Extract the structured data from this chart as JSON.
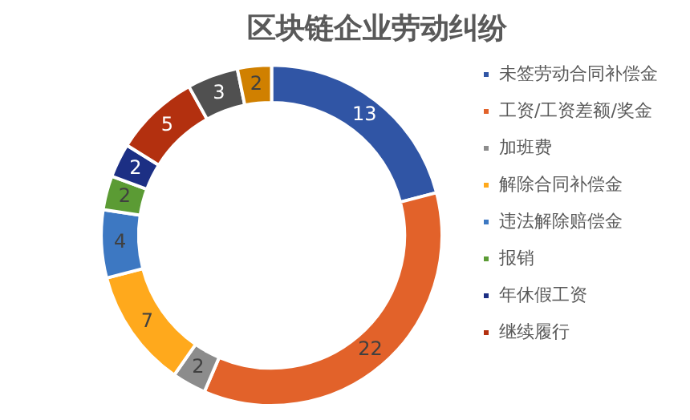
{
  "chart_data": {
    "type": "donut",
    "title": "区块链企业劳动纠纷",
    "categories": [
      "未签劳动合同补偿金",
      "工资/工资差额/奖金",
      "加班费",
      "解除合同补偿金",
      "违法解除赔偿金",
      "报销",
      "年休假工资",
      "继续履行",
      null,
      null
    ],
    "values": [
      13,
      22,
      2,
      7,
      4,
      2,
      2,
      5,
      3,
      2
    ],
    "colors": [
      "#3055a5",
      "#e2622a",
      "#8c8c8c",
      "#ffa91c",
      "#3d78c2",
      "#5b9b34",
      "#1c2f84",
      "#b3300f",
      "#505050",
      "#d08000"
    ],
    "data_labels": true,
    "legend": "right"
  }
}
